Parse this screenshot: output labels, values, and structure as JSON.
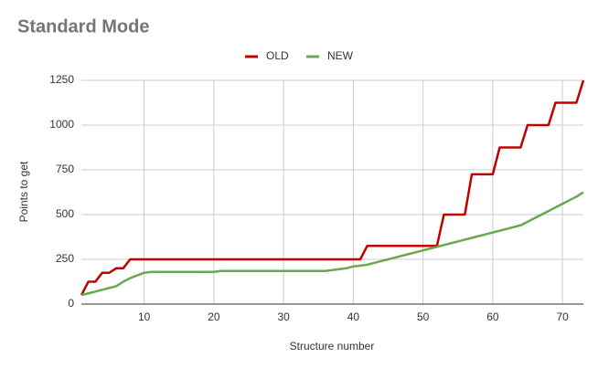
{
  "chart_data": {
    "type": "line",
    "title": "Standard Mode",
    "x_label": "Structure number",
    "y_label": "Points to get",
    "x": [
      1,
      2,
      3,
      4,
      5,
      6,
      7,
      8,
      9,
      10,
      11,
      12,
      13,
      14,
      15,
      16,
      17,
      18,
      19,
      20,
      21,
      22,
      23,
      24,
      25,
      26,
      27,
      28,
      29,
      30,
      31,
      32,
      33,
      34,
      35,
      36,
      37,
      38,
      39,
      40,
      41,
      42,
      43,
      44,
      45,
      46,
      47,
      48,
      49,
      50,
      51,
      52,
      53,
      54,
      55,
      56,
      57,
      58,
      59,
      60,
      61,
      62,
      63,
      64,
      65,
      66,
      67,
      68,
      69,
      70,
      71,
      72,
      73
    ],
    "series": [
      {
        "name": "OLD",
        "color": "#c00000",
        "values": [
          50,
          125,
          125,
          175,
          175,
          200,
          200,
          250,
          250,
          250,
          250,
          250,
          250,
          250,
          250,
          250,
          250,
          250,
          250,
          250,
          250,
          250,
          250,
          250,
          250,
          250,
          250,
          250,
          250,
          250,
          250,
          250,
          250,
          250,
          250,
          250,
          250,
          250,
          250,
          250,
          250,
          325,
          325,
          325,
          325,
          325,
          325,
          325,
          325,
          325,
          325,
          325,
          500,
          500,
          500,
          500,
          725,
          725,
          725,
          725,
          875,
          875,
          875,
          875,
          1000,
          1000,
          1000,
          1000,
          1125,
          1125,
          1125,
          1125,
          1250
        ]
      },
      {
        "name": "NEW",
        "color": "#6aa84f",
        "values": [
          50,
          60,
          70,
          80,
          90,
          100,
          125,
          145,
          160,
          175,
          180,
          180,
          180,
          180,
          180,
          180,
          180,
          180,
          180,
          180,
          185,
          185,
          185,
          185,
          185,
          185,
          185,
          185,
          185,
          185,
          185,
          185,
          185,
          185,
          185,
          185,
          190,
          195,
          200,
          210,
          215,
          220,
          230,
          240,
          250,
          260,
          270,
          280,
          290,
          300,
          310,
          320,
          330,
          340,
          350,
          360,
          370,
          380,
          390,
          400,
          410,
          420,
          430,
          440,
          460,
          480,
          500,
          520,
          540,
          560,
          580,
          600,
          625
        ]
      }
    ],
    "xlim": [
      1,
      73
    ],
    "xticks": [
      10,
      20,
      30,
      40,
      50,
      60,
      70
    ],
    "ylim": [
      0,
      1250
    ],
    "yticks": [
      0,
      250,
      500,
      750,
      1000,
      1250
    ],
    "grid": true,
    "legend": "top"
  }
}
